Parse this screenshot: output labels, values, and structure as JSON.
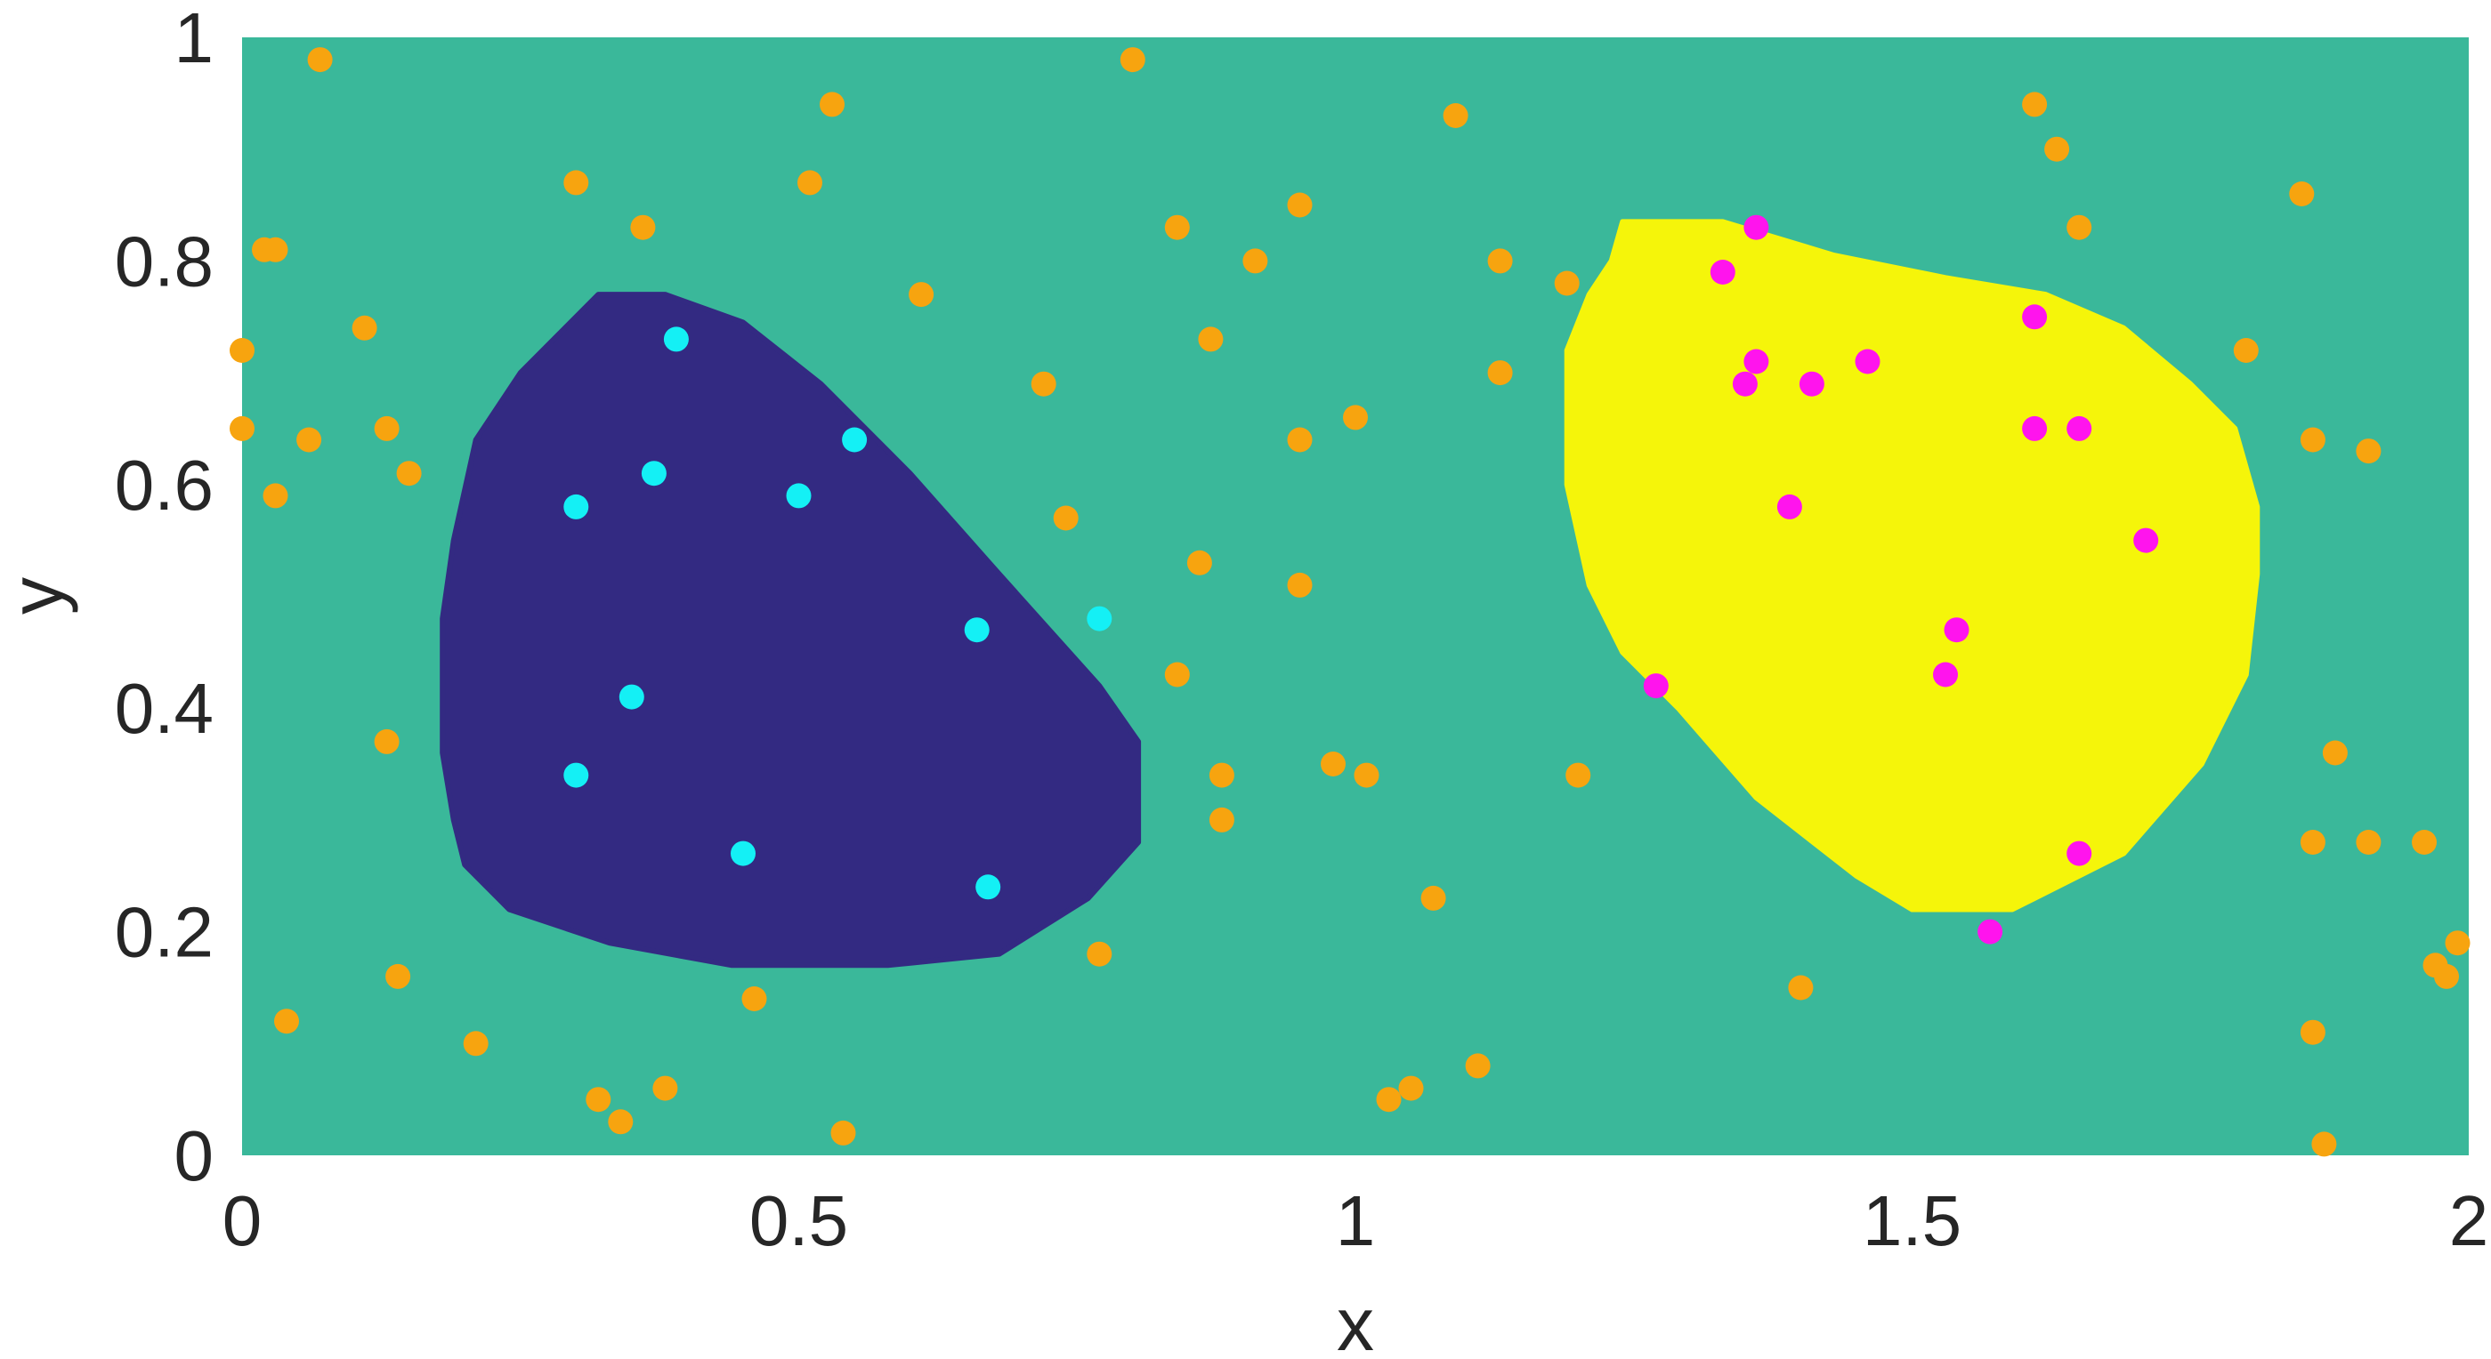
{
  "chart_data": {
    "type": "scatter",
    "title": "",
    "xlabel": "x",
    "ylabel": "y",
    "xlim": [
      0,
      2
    ],
    "ylim": [
      0,
      1
    ],
    "x_ticks": [
      "0",
      "0.5",
      "1",
      "1.5",
      "2"
    ],
    "y_ticks": [
      "0",
      "0.2",
      "0.4",
      "0.6",
      "0.8",
      "1"
    ],
    "grid": false,
    "legend": "none",
    "colors": {
      "background": "#3ab89a",
      "region_left": "#332a82",
      "region_right": "#f5f50a",
      "points_background": "#f7a40f",
      "points_left": "#14f0f5",
      "points_right": "#ff14ed",
      "axis_text": "#262626"
    },
    "regions": [
      {
        "name": "region-left",
        "outline": [
          [
            0.32,
            0.77
          ],
          [
            0.38,
            0.77
          ],
          [
            0.45,
            0.745
          ],
          [
            0.52,
            0.69
          ],
          [
            0.6,
            0.61
          ],
          [
            0.68,
            0.52
          ],
          [
            0.77,
            0.42
          ],
          [
            0.805,
            0.37
          ],
          [
            0.805,
            0.28
          ],
          [
            0.76,
            0.23
          ],
          [
            0.68,
            0.18
          ],
          [
            0.58,
            0.17
          ],
          [
            0.44,
            0.17
          ],
          [
            0.33,
            0.19
          ],
          [
            0.24,
            0.22
          ],
          [
            0.2,
            0.26
          ],
          [
            0.19,
            0.3
          ],
          [
            0.18,
            0.36
          ],
          [
            0.18,
            0.48
          ],
          [
            0.19,
            0.55
          ],
          [
            0.21,
            0.64
          ],
          [
            0.25,
            0.7
          ]
        ]
      },
      {
        "name": "region-right",
        "outline": [
          [
            1.24,
            0.835
          ],
          [
            1.33,
            0.835
          ],
          [
            1.43,
            0.805
          ],
          [
            1.53,
            0.785
          ],
          [
            1.62,
            0.77
          ],
          [
            1.69,
            0.74
          ],
          [
            1.75,
            0.69
          ],
          [
            1.79,
            0.65
          ],
          [
            1.81,
            0.58
          ],
          [
            1.81,
            0.52
          ],
          [
            1.8,
            0.43
          ],
          [
            1.76,
            0.35
          ],
          [
            1.69,
            0.27
          ],
          [
            1.59,
            0.22
          ],
          [
            1.5,
            0.22
          ],
          [
            1.45,
            0.25
          ],
          [
            1.36,
            0.32
          ],
          [
            1.29,
            0.4
          ],
          [
            1.24,
            0.45
          ],
          [
            1.21,
            0.51
          ],
          [
            1.19,
            0.6
          ],
          [
            1.19,
            0.72
          ],
          [
            1.21,
            0.77
          ],
          [
            1.23,
            0.8
          ]
        ]
      }
    ],
    "series": [
      {
        "color": "#f7a40f",
        "points": [
          [
            0.07,
            0.98
          ],
          [
            0.8,
            0.98
          ],
          [
            0.53,
            0.94
          ],
          [
            1.09,
            0.93
          ],
          [
            1.61,
            0.94
          ],
          [
            1.63,
            0.9
          ],
          [
            0.3,
            0.87
          ],
          [
            0.51,
            0.87
          ],
          [
            0.95,
            0.85
          ],
          [
            1.85,
            0.86
          ],
          [
            0.36,
            0.83
          ],
          [
            0.84,
            0.83
          ],
          [
            1.65,
            0.83
          ],
          [
            0.02,
            0.81
          ],
          [
            0.03,
            0.81
          ],
          [
            0.91,
            0.8
          ],
          [
            1.13,
            0.8
          ],
          [
            1.19,
            0.78
          ],
          [
            0.61,
            0.77
          ],
          [
            0.11,
            0.74
          ],
          [
            0.87,
            0.73
          ],
          [
            0.0,
            0.72
          ],
          [
            1.8,
            0.72
          ],
          [
            0.72,
            0.69
          ],
          [
            1.13,
            0.7
          ],
          [
            0.0,
            0.65
          ],
          [
            0.06,
            0.64
          ],
          [
            0.13,
            0.65
          ],
          [
            0.95,
            0.64
          ],
          [
            1.0,
            0.66
          ],
          [
            1.86,
            0.64
          ],
          [
            1.91,
            0.63
          ],
          [
            0.15,
            0.61
          ],
          [
            0.03,
            0.59
          ],
          [
            0.74,
            0.57
          ],
          [
            0.86,
            0.53
          ],
          [
            0.95,
            0.51
          ],
          [
            0.84,
            0.43
          ],
          [
            0.13,
            0.37
          ],
          [
            0.98,
            0.35
          ],
          [
            0.88,
            0.34
          ],
          [
            1.01,
            0.34
          ],
          [
            1.2,
            0.34
          ],
          [
            0.88,
            0.3
          ],
          [
            1.86,
            0.28
          ],
          [
            1.88,
            0.36
          ],
          [
            1.91,
            0.28
          ],
          [
            1.96,
            0.28
          ],
          [
            1.07,
            0.23
          ],
          [
            0.77,
            0.18
          ],
          [
            1.99,
            0.19
          ],
          [
            1.97,
            0.17
          ],
          [
            1.98,
            0.16
          ],
          [
            0.14,
            0.16
          ],
          [
            1.4,
            0.15
          ],
          [
            0.46,
            0.14
          ],
          [
            0.04,
            0.12
          ],
          [
            1.86,
            0.11
          ],
          [
            0.21,
            0.1
          ],
          [
            1.11,
            0.08
          ],
          [
            0.38,
            0.06
          ],
          [
            1.05,
            0.06
          ],
          [
            0.32,
            0.05
          ],
          [
            1.03,
            0.05
          ],
          [
            0.34,
            0.03
          ],
          [
            0.54,
            0.02
          ],
          [
            1.87,
            0.01
          ]
        ]
      },
      {
        "color": "#14f0f5",
        "points": [
          [
            0.39,
            0.73
          ],
          [
            0.55,
            0.64
          ],
          [
            0.37,
            0.61
          ],
          [
            0.5,
            0.59
          ],
          [
            0.3,
            0.58
          ],
          [
            0.66,
            0.47
          ],
          [
            0.77,
            0.48
          ],
          [
            0.35,
            0.41
          ],
          [
            0.3,
            0.34
          ],
          [
            0.45,
            0.27
          ],
          [
            0.67,
            0.24
          ]
        ]
      },
      {
        "color": "#ff14ed",
        "points": [
          [
            1.36,
            0.83
          ],
          [
            1.33,
            0.79
          ],
          [
            1.61,
            0.75
          ],
          [
            1.36,
            0.71
          ],
          [
            1.46,
            0.71
          ],
          [
            1.35,
            0.69
          ],
          [
            1.41,
            0.69
          ],
          [
            1.61,
            0.65
          ],
          [
            1.65,
            0.65
          ],
          [
            1.39,
            0.58
          ],
          [
            1.71,
            0.55
          ],
          [
            1.54,
            0.47
          ],
          [
            1.53,
            0.43
          ],
          [
            1.27,
            0.42
          ],
          [
            1.65,
            0.27
          ],
          [
            1.57,
            0.2
          ]
        ]
      }
    ]
  }
}
